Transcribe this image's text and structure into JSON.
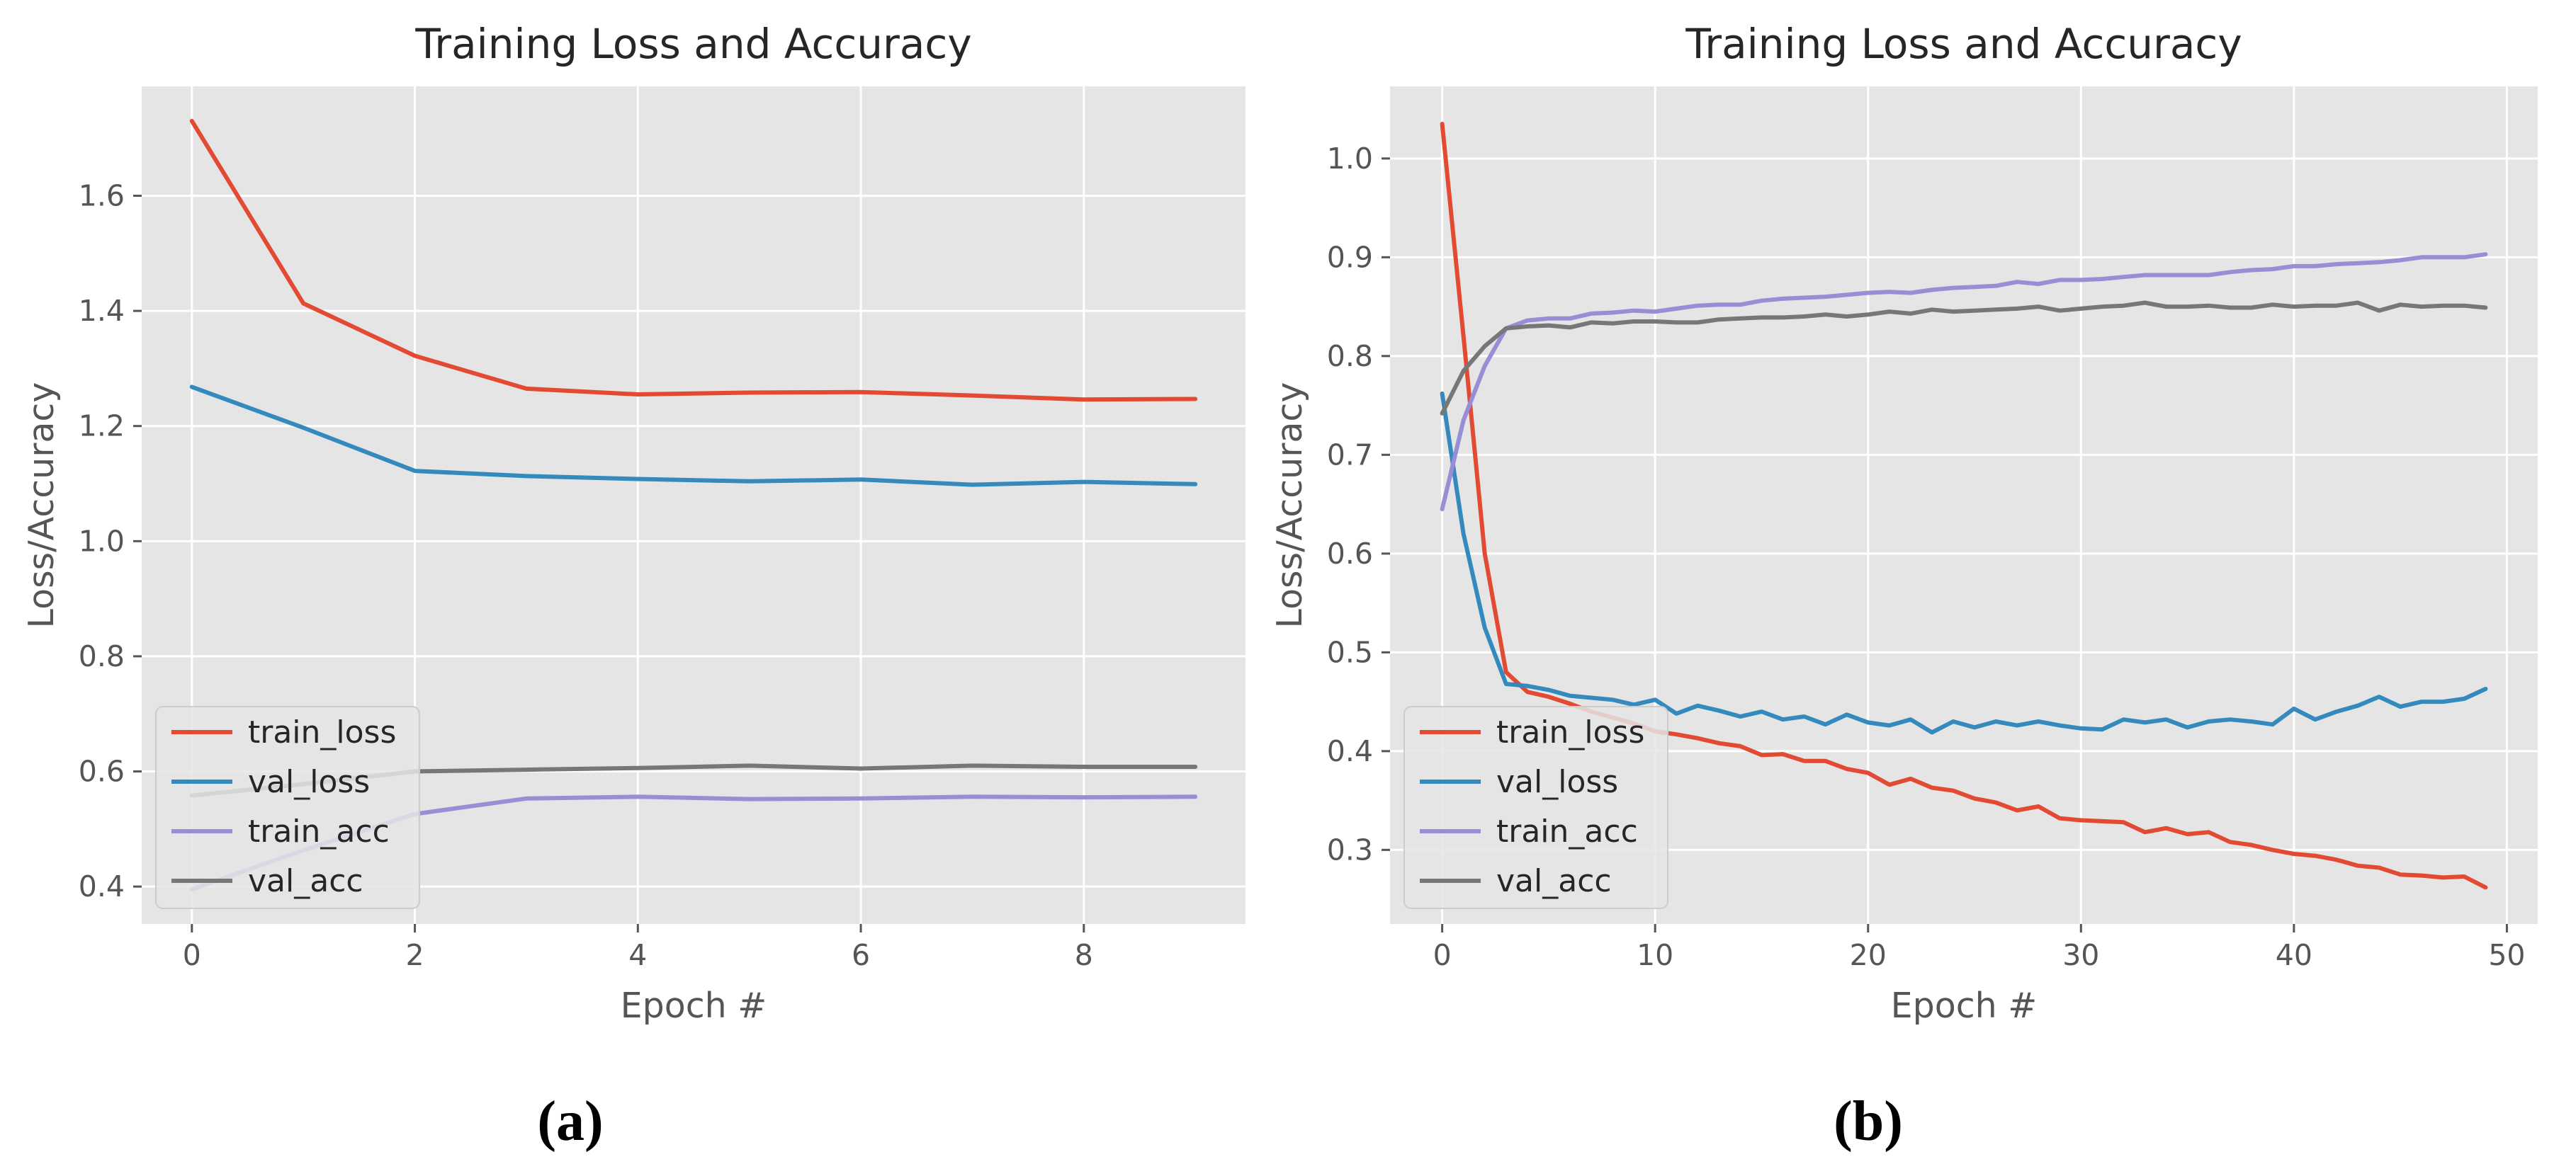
{
  "chart_data": [
    {
      "type": "line",
      "panel_label": "(a)",
      "title": "Training Loss and Accuracy",
      "xlabel": "Epoch #",
      "ylabel": "Loss/Accuracy",
      "xlim": [
        -0.45,
        9.45
      ],
      "ylim": [
        0.335,
        1.79
      ],
      "xticks": [
        0,
        2,
        4,
        6,
        8
      ],
      "yticks": [
        0.4,
        0.6,
        0.8,
        1.0,
        1.2,
        1.4,
        1.6
      ],
      "ytick_labels": [
        "0.4",
        "0.6",
        "0.8",
        "1.0",
        "1.2",
        "1.4",
        "1.6"
      ],
      "grid": true,
      "legend": "lower-left",
      "x": [
        0,
        1,
        2,
        3,
        4,
        5,
        6,
        7,
        8,
        9
      ],
      "series": [
        {
          "name": "train_loss",
          "color": "#e24a33",
          "values": [
            1.73,
            1.413,
            1.322,
            1.265,
            1.255,
            1.258,
            1.259,
            1.253,
            1.246,
            1.247
          ]
        },
        {
          "name": "val_loss",
          "color": "#348abd",
          "values": [
            1.268,
            1.197,
            1.122,
            1.113,
            1.108,
            1.104,
            1.107,
            1.098,
            1.103,
            1.099
          ]
        },
        {
          "name": "train_acc",
          "color": "#988ed5",
          "values": [
            0.395,
            0.463,
            0.526,
            0.553,
            0.556,
            0.552,
            0.553,
            0.556,
            0.555,
            0.556
          ]
        },
        {
          "name": "val_acc",
          "color": "#777777",
          "values": [
            0.558,
            0.578,
            0.6,
            0.603,
            0.606,
            0.61,
            0.605,
            0.61,
            0.608,
            0.608
          ]
        }
      ]
    },
    {
      "type": "line",
      "panel_label": "(b)",
      "title": "Training Loss and Accuracy",
      "xlabel": "Epoch #",
      "ylabel": "Loss/Accuracy",
      "xlim": [
        -2.45,
        51.45
      ],
      "ylim": [
        0.225,
        1.073
      ],
      "xticks": [
        0,
        10,
        20,
        30,
        40,
        50
      ],
      "yticks": [
        0.3,
        0.4,
        0.5,
        0.6,
        0.7,
        0.8,
        0.9,
        1.0
      ],
      "ytick_labels": [
        "0.3",
        "0.4",
        "0.5",
        "0.6",
        "0.7",
        "0.8",
        "0.9",
        "1.0"
      ],
      "grid": true,
      "legend": "lower-left",
      "x": [
        0,
        1,
        2,
        3,
        4,
        5,
        6,
        7,
        8,
        9,
        10,
        11,
        12,
        13,
        14,
        15,
        16,
        17,
        18,
        19,
        20,
        21,
        22,
        23,
        24,
        25,
        26,
        27,
        28,
        29,
        30,
        31,
        32,
        33,
        34,
        35,
        36,
        37,
        38,
        39,
        40,
        41,
        42,
        43,
        44,
        45,
        46,
        47,
        48,
        49
      ],
      "series": [
        {
          "name": "train_loss",
          "color": "#e24a33",
          "values": [
            1.035,
            0.82,
            0.6,
            0.48,
            0.46,
            0.455,
            0.448,
            0.44,
            0.434,
            0.428,
            0.42,
            0.417,
            0.413,
            0.408,
            0.405,
            0.396,
            0.397,
            0.39,
            0.39,
            0.382,
            0.378,
            0.366,
            0.372,
            0.363,
            0.36,
            0.352,
            0.348,
            0.34,
            0.344,
            0.332,
            0.33,
            0.329,
            0.328,
            0.318,
            0.322,
            0.316,
            0.318,
            0.308,
            0.305,
            0.3,
            0.296,
            0.294,
            0.29,
            0.284,
            0.282,
            0.275,
            0.274,
            0.272,
            0.273,
            0.262
          ]
        },
        {
          "name": "val_loss",
          "color": "#348abd",
          "values": [
            0.762,
            0.62,
            0.525,
            0.468,
            0.466,
            0.462,
            0.456,
            0.454,
            0.452,
            0.447,
            0.452,
            0.438,
            0.446,
            0.441,
            0.435,
            0.44,
            0.432,
            0.435,
            0.427,
            0.437,
            0.429,
            0.426,
            0.432,
            0.419,
            0.43,
            0.424,
            0.43,
            0.426,
            0.43,
            0.426,
            0.423,
            0.422,
            0.432,
            0.429,
            0.432,
            0.424,
            0.43,
            0.432,
            0.43,
            0.427,
            0.443,
            0.432,
            0.44,
            0.446,
            0.455,
            0.445,
            0.45,
            0.45,
            0.453,
            0.463
          ]
        },
        {
          "name": "train_acc",
          "color": "#988ed5",
          "values": [
            0.645,
            0.735,
            0.79,
            0.828,
            0.836,
            0.838,
            0.838,
            0.843,
            0.844,
            0.846,
            0.845,
            0.848,
            0.851,
            0.852,
            0.852,
            0.856,
            0.858,
            0.859,
            0.86,
            0.862,
            0.864,
            0.865,
            0.864,
            0.867,
            0.869,
            0.87,
            0.871,
            0.875,
            0.873,
            0.877,
            0.877,
            0.878,
            0.88,
            0.882,
            0.882,
            0.882,
            0.882,
            0.885,
            0.887,
            0.888,
            0.891,
            0.891,
            0.893,
            0.894,
            0.895,
            0.897,
            0.9,
            0.9,
            0.9,
            0.903
          ]
        },
        {
          "name": "val_acc",
          "color": "#777777",
          "values": [
            0.742,
            0.785,
            0.81,
            0.828,
            0.83,
            0.831,
            0.829,
            0.834,
            0.833,
            0.835,
            0.835,
            0.834,
            0.834,
            0.837,
            0.838,
            0.839,
            0.839,
            0.84,
            0.842,
            0.84,
            0.842,
            0.845,
            0.843,
            0.847,
            0.845,
            0.846,
            0.847,
            0.848,
            0.85,
            0.846,
            0.848,
            0.85,
            0.851,
            0.854,
            0.85,
            0.85,
            0.851,
            0.849,
            0.849,
            0.852,
            0.85,
            0.851,
            0.851,
            0.854,
            0.846,
            0.852,
            0.85,
            0.851,
            0.851,
            0.849
          ]
        }
      ]
    }
  ]
}
